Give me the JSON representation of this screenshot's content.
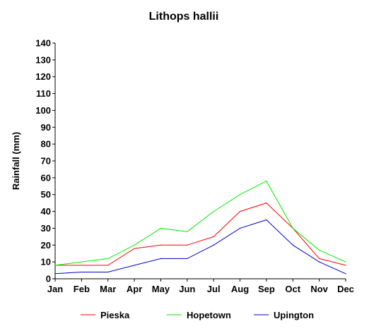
{
  "chart_data": {
    "type": "line",
    "title": "Lithops hallii",
    "ylabel": "Rainfall (mm)",
    "xlabel": "",
    "ylim": [
      0,
      140
    ],
    "yticks": [
      0,
      10,
      20,
      30,
      40,
      50,
      60,
      70,
      80,
      90,
      100,
      110,
      120,
      130,
      140
    ],
    "categories": [
      "Jan",
      "Feb",
      "Mar",
      "Apr",
      "May",
      "Jun",
      "Jul",
      "Aug",
      "Sep",
      "Oct",
      "Nov",
      "Dec"
    ],
    "grid": false,
    "legend_position": "bottom",
    "series": [
      {
        "name": "Pieska",
        "color": "#ff0000",
        "values": [
          8,
          8,
          8,
          18,
          20,
          20,
          25,
          40,
          45,
          30,
          12,
          8
        ]
      },
      {
        "name": "Hopetown",
        "color": "#00ee00",
        "values": [
          8,
          10,
          12,
          20,
          30,
          28,
          40,
          50,
          58,
          30,
          17,
          10
        ]
      },
      {
        "name": "Upington",
        "color": "#0000cc",
        "values": [
          3,
          4,
          4,
          8,
          12,
          12,
          20,
          30,
          35,
          20,
          10,
          3
        ]
      }
    ]
  }
}
